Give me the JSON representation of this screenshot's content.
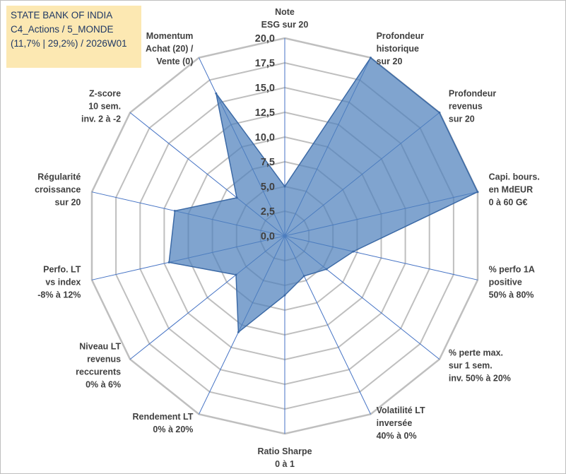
{
  "title_box": {
    "line1": "STATE BANK OF INDIA",
    "line2": "C4_Actions / 5_MONDE",
    "line3": "(11,7% | 29,2%) / 2026W01"
  },
  "colors": {
    "fill": "#4f81bd",
    "stroke": "#3c6aa6",
    "grid": "#bfbfbf",
    "spoke": "#4472c4",
    "title_bg": "#fce8b2"
  },
  "chart_data": {
    "type": "radar",
    "rmin": 0,
    "rmax": 20,
    "ticks": [
      "0,0",
      "2,5",
      "5,0",
      "7,5",
      "10,0",
      "12,5",
      "15,0",
      "17,5",
      "20,0"
    ],
    "categories": [
      [
        "Note",
        "ESG sur 20"
      ],
      [
        "Profondeur",
        "historique",
        "sur 20"
      ],
      [
        "Profondeur",
        "revenus",
        "sur 20"
      ],
      [
        "Capi. bours.",
        "en MdEUR",
        "0 à 60 G€"
      ],
      [
        "% perfo 1A",
        "positive",
        "50% à 80%"
      ],
      [
        "% perte max.",
        "sur 1 sem.",
        "inv. 50% à 20%"
      ],
      [
        "Volatilité LT",
        "inversée",
        "40% à 0%"
      ],
      [
        "Ratio Sharpe",
        "0 à 1"
      ],
      [
        "Rendement LT",
        "0% à 20%"
      ],
      [
        "Niveau LT",
        "revenus",
        "reccurents",
        "0% à 6%"
      ],
      [
        "Perfo. LT",
        "vs index",
        "-8% à 12%"
      ],
      [
        "Régularité",
        "croissance",
        "sur 20"
      ],
      [
        "Z-score",
        "10 sem.",
        "inv. 2 à -2"
      ],
      [
        "Momentum",
        "Achat (20) /",
        "Vente (0)"
      ]
    ],
    "series": [
      {
        "name": "STATE BANK OF INDIA",
        "values": [
          5.0,
          20.0,
          20.0,
          20.0,
          7.1,
          5.4,
          4.5,
          6.0,
          10.8,
          6.3,
          12.0,
          11.4,
          6.2,
          16.0
        ]
      }
    ]
  }
}
